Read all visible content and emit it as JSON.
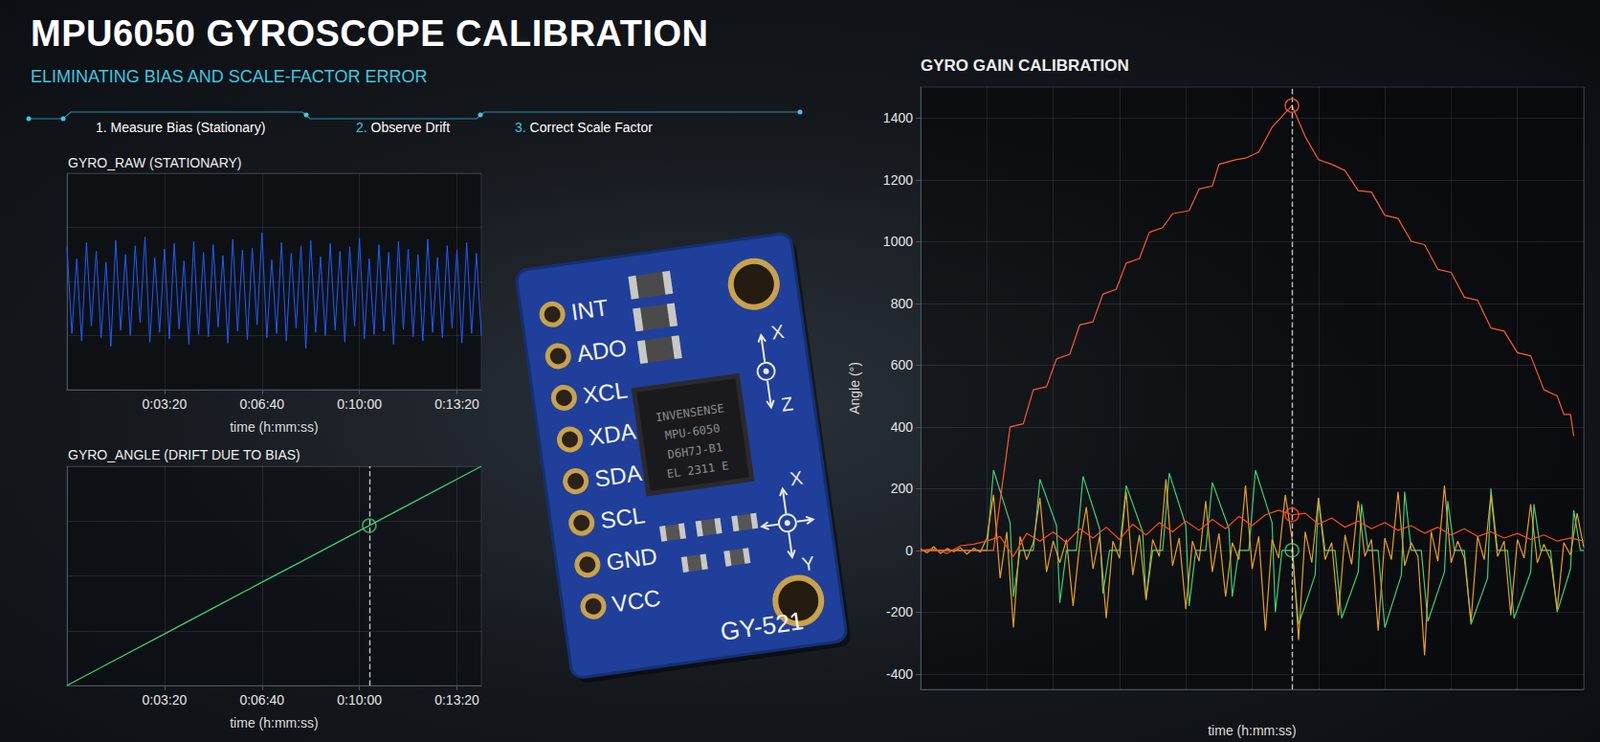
{
  "header": {
    "title": "MPU6050 GYROSCOPE CALIBRATION",
    "subtitle": "ELIMINATING BIAS AND SCALE-FACTOR ERROR",
    "steps": [
      {
        "number": "1.",
        "text": "Measure Bias (Stationary)"
      },
      {
        "number": "2.",
        "text": "Observe Drift"
      },
      {
        "number": "3.",
        "text": "Correct Scale Factor"
      }
    ]
  },
  "board": {
    "pins": [
      "INT",
      "ADO",
      "XCL",
      "XDA",
      "SDA",
      "SCL",
      "GND",
      "VCC"
    ],
    "chip": [
      "INVENSENSE",
      "MPU-6050",
      "D6H7J-B1",
      "EL 2311 E"
    ],
    "model": "GY-521",
    "axes": [
      "X",
      "Z",
      "X",
      "Y"
    ]
  },
  "chart_data": [
    {
      "type": "line",
      "title": "GYRO_RAW (STATIONARY)",
      "xlabel": "time (h:mm:ss)",
      "xlim": [
        0,
        850
      ],
      "xticks": [
        {
          "value": 200,
          "label": "0:03:20"
        },
        {
          "value": 400,
          "label": "0:06:40"
        },
        {
          "value": 600,
          "label": "0:10:00"
        },
        {
          "value": 800,
          "label": "0:13:20"
        }
      ],
      "ylim": [
        -1,
        1
      ],
      "yticks": [
        -1,
        -0.5,
        0,
        0.5,
        1
      ],
      "grid": true,
      "tick_labels": "x",
      "series": [
        {
          "color": "#1f5cff",
          "x": [
            0,
            10,
            20,
            30,
            40,
            50,
            60,
            70,
            80,
            90,
            100,
            110,
            120,
            130,
            140,
            150,
            160,
            170,
            180,
            190,
            200,
            210,
            220,
            230,
            240,
            250,
            260,
            270,
            280,
            290,
            300,
            310,
            320,
            330,
            340,
            350,
            360,
            370,
            380,
            390,
            400,
            410,
            420,
            430,
            440,
            450,
            460,
            470,
            480,
            490,
            500,
            510,
            520,
            530,
            540,
            550,
            560,
            570,
            580,
            590,
            600,
            610,
            620,
            630,
            640,
            650,
            660,
            670,
            680,
            690,
            700,
            710,
            720,
            730,
            740,
            750,
            760,
            770,
            780,
            790,
            800,
            810,
            820,
            830,
            840,
            850
          ],
          "values": [
            0.32,
            -0.48,
            0.21,
            -0.55,
            0.36,
            -0.41,
            0.28,
            -0.52,
            0.18,
            -0.6,
            0.38,
            -0.45,
            0.25,
            -0.5,
            0.33,
            -0.38,
            0.41,
            -0.56,
            0.22,
            -0.47,
            0.3,
            -0.53,
            0.35,
            -0.44,
            0.19,
            -0.58,
            0.37,
            -0.49,
            0.27,
            -0.51,
            0.34,
            -0.42,
            0.24,
            -0.57,
            0.39,
            -0.46,
            0.29,
            -0.54,
            0.31,
            -0.4,
            0.45,
            -0.52,
            0.2,
            -0.48,
            0.36,
            -0.55,
            0.26,
            -0.43,
            0.33,
            -0.62,
            0.38,
            -0.47,
            0.23,
            -0.5,
            0.35,
            -0.45,
            0.28,
            -0.56,
            0.32,
            -0.41,
            0.4,
            -0.53,
            0.21,
            -0.49,
            0.34,
            -0.46,
            0.27,
            -0.58,
            0.37,
            -0.44,
            0.3,
            -0.51,
            0.25,
            -0.55,
            0.39,
            -0.47,
            0.22,
            -0.52,
            0.33,
            -0.43,
            0.29,
            -0.57,
            0.36,
            -0.48,
            0.26,
            -0.5
          ]
        }
      ]
    },
    {
      "type": "line",
      "title": "GYRO_ANGLE (DRIFT DUE TO BIAS)",
      "xlabel": "time (h:mm:ss)",
      "xlim": [
        0,
        850
      ],
      "xticks": [
        {
          "value": 200,
          "label": "0:03:20"
        },
        {
          "value": 400,
          "label": "0:06:40"
        },
        {
          "value": 600,
          "label": "0:10:00"
        },
        {
          "value": 800,
          "label": "0:13:20"
        }
      ],
      "ylim": [
        0,
        1
      ],
      "yticks": [
        0,
        0.25,
        0.5,
        0.75,
        1
      ],
      "grid": true,
      "tick_labels": "x",
      "series": [
        {
          "color": "#3ccf7a",
          "x": [
            0,
            100,
            200,
            300,
            400,
            500,
            600,
            700,
            800,
            850
          ],
          "values": [
            0,
            0.118,
            0.235,
            0.353,
            0.471,
            0.588,
            0.706,
            0.824,
            0.941,
            1.0
          ]
        }
      ],
      "cursor": {
        "x": 620,
        "y": [
          0.729
        ],
        "colors": [
          "#3ccf7a"
        ]
      }
    },
    {
      "type": "line",
      "title": "GYRO GAIN CALIBRATION",
      "xlabel": "time (h:mm:ss)",
      "ylabel": "Angle (°)",
      "xlim": [
        0,
        100
      ],
      "xticks": [
        0,
        10,
        20,
        30,
        40,
        50,
        60,
        70,
        80,
        90,
        100
      ],
      "ylim": [
        -450,
        1500
      ],
      "yticks": [
        -400,
        -200,
        0,
        200,
        400,
        600,
        800,
        1000,
        1200,
        1400
      ],
      "grid": true,
      "tick_labels": "y",
      "series": [
        {
          "color": "#3ccf7a",
          "x": [
            0,
            10,
            11,
            13.5,
            14,
            15,
            17,
            18,
            20.5,
            21,
            22,
            23.5,
            24.5,
            27,
            27.5,
            28.5,
            30,
            31,
            33.5,
            34,
            35,
            36.5,
            37.5,
            40,
            40.5,
            41.5,
            43,
            44,
            46.5,
            47,
            48,
            49.5,
            50.5,
            53,
            53.5,
            54.5,
            56,
            57,
            59.5,
            60,
            61,
            62.5,
            63.5,
            66,
            66.5,
            67.5,
            69,
            70,
            72.5,
            73,
            74,
            75.5,
            76.5,
            79,
            79.5,
            80.5,
            82,
            83,
            85.5,
            86,
            87,
            88.5,
            89.5,
            92,
            92.5,
            93.5,
            95,
            96,
            98,
            98.5,
            99.5,
            100
          ],
          "values": [
            0,
            0,
            260,
            90,
            -150,
            0,
            0,
            230,
            80,
            -170,
            0,
            0,
            240,
            70,
            -140,
            0,
            0,
            210,
            60,
            -160,
            0,
            0,
            250,
            80,
            -180,
            0,
            0,
            220,
            70,
            -150,
            0,
            0,
            260,
            90,
            -200,
            0,
            0,
            -240,
            -80,
            170,
            0,
            0,
            -220,
            -70,
            150,
            0,
            0,
            -250,
            -80,
            190,
            0,
            0,
            -230,
            -70,
            160,
            0,
            0,
            -240,
            -90,
            200,
            0,
            0,
            -220,
            -70,
            150,
            0,
            0,
            -200,
            -60,
            130,
            0,
            0
          ]
        },
        {
          "color": "#e8a020",
          "x": [
            0,
            1,
            2,
            3,
            4,
            5,
            6,
            7,
            8,
            9,
            10,
            11,
            12,
            13,
            14,
            15,
            16,
            17,
            18,
            19,
            20,
            21,
            22,
            23,
            24,
            25,
            26,
            27,
            28,
            29,
            30,
            31,
            32,
            33,
            34,
            35,
            36,
            37,
            38,
            39,
            40,
            41,
            42,
            43,
            44,
            45,
            46,
            47,
            48,
            49,
            50,
            51,
            52,
            53,
            54,
            55,
            56,
            57,
            58,
            59,
            60,
            61,
            62,
            63,
            64,
            65,
            66,
            67,
            68,
            69,
            70,
            71,
            72,
            73,
            74,
            75,
            76,
            77,
            78,
            79,
            80,
            81,
            82,
            83,
            84,
            85,
            86,
            87,
            88,
            89,
            90,
            91,
            92,
            93,
            94,
            95,
            96,
            97,
            98,
            99,
            100
          ],
          "values": [
            5,
            -8,
            12,
            -10,
            6,
            -4,
            9,
            -12,
            7,
            -6,
            40,
            180,
            -90,
            60,
            -250,
            45,
            -30,
            25,
            170,
            -70,
            30,
            -40,
            35,
            -180,
            20,
            140,
            -60,
            45,
            -220,
            30,
            -25,
            190,
            -80,
            50,
            -160,
            35,
            -20,
            230,
            -50,
            40,
            -190,
            30,
            -35,
            160,
            -70,
            55,
            -150,
            25,
            -30,
            210,
            -60,
            45,
            -260,
            35,
            -25,
            180,
            40,
            -290,
            60,
            -40,
            170,
            -30,
            25,
            -210,
            50,
            -45,
            160,
            -20,
            35,
            -260,
            40,
            -30,
            190,
            -50,
            25,
            -20,
            -340,
            60,
            -35,
            210,
            -40,
            30,
            -25,
            -230,
            45,
            -30,
            180,
            -20,
            30,
            -210,
            35,
            -25,
            150,
            -40,
            20,
            -30,
            -190,
            25,
            -15,
            120,
            10
          ]
        },
        {
          "color": "#ff4a1a",
          "x": [
            0,
            2,
            4,
            6,
            8,
            10,
            12,
            14,
            16,
            18,
            20,
            22,
            24,
            26,
            28,
            30,
            32,
            34,
            36,
            38,
            40,
            42,
            44,
            46,
            48,
            50,
            52,
            54,
            56,
            58,
            60,
            62,
            64,
            66,
            68,
            70,
            72,
            74,
            76,
            78,
            80,
            82,
            84,
            86,
            88,
            90,
            92,
            94,
            96,
            98,
            100
          ],
          "values": [
            0,
            5,
            -10,
            15,
            20,
            30,
            45,
            -20,
            55,
            30,
            60,
            25,
            70,
            40,
            75,
            35,
            85,
            50,
            90,
            60,
            95,
            65,
            100,
            70,
            110,
            80,
            115,
            130,
            115,
            120,
            85,
            105,
            75,
            95,
            70,
            90,
            65,
            80,
            55,
            75,
            50,
            70,
            45,
            60,
            40,
            55,
            35,
            50,
            30,
            40,
            30
          ]
        },
        {
          "color": "#ff5a2a",
          "x": [
            0,
            11,
            13.5,
            15.5,
            17,
            19,
            20.5,
            22.5,
            24,
            26,
            27.5,
            29.5,
            31,
            33,
            34.5,
            36.5,
            38,
            40.5,
            42,
            44,
            45,
            47.5,
            49,
            51,
            53,
            56,
            58,
            60,
            62,
            64,
            66,
            68,
            70,
            72,
            74,
            76,
            78,
            80,
            82,
            84,
            86,
            88,
            90,
            92,
            94,
            96,
            97,
            98,
            98.5
          ],
          "values": [
            0,
            0,
            400,
            410,
            520,
            530,
            620,
            635,
            730,
            740,
            830,
            845,
            930,
            945,
            1030,
            1045,
            1090,
            1100,
            1170,
            1180,
            1250,
            1265,
            1270,
            1290,
            1370,
            1440,
            1340,
            1265,
            1250,
            1230,
            1165,
            1160,
            1085,
            1075,
            1000,
            990,
            910,
            900,
            820,
            810,
            720,
            710,
            640,
            630,
            520,
            500,
            440,
            440,
            370
          ]
        }
      ],
      "cursor": {
        "x": 56,
        "y": [
          1440,
          115,
          0
        ],
        "colors": [
          "#ff5a2a",
          "#ff4a1a",
          "#3ccf7a"
        ]
      }
    }
  ]
}
